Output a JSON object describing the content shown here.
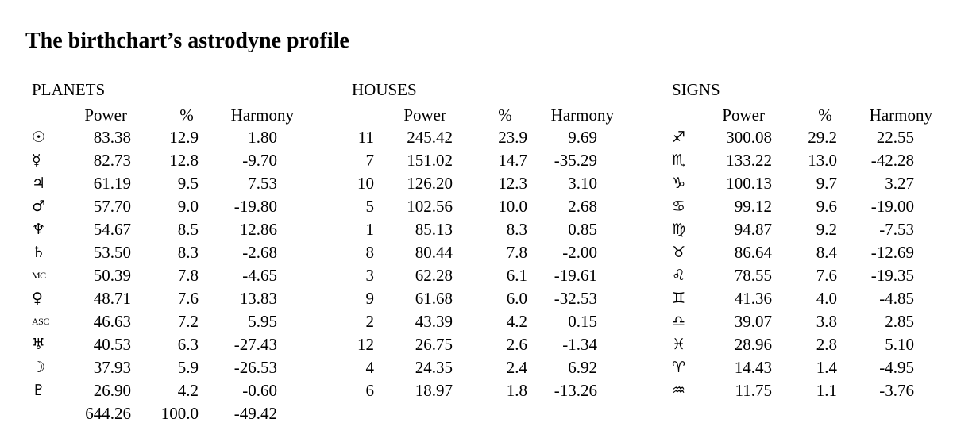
{
  "title": "The birthchart’s astrodyne profile",
  "planets": {
    "title": "PLANETS",
    "headers": {
      "power": "Power",
      "pct": "%",
      "harmony": "Harmony"
    },
    "rows": [
      {
        "label": "☉",
        "label_icon": "sun-symbol",
        "power": "83.38",
        "pct": "12.9",
        "harmony": "1.80"
      },
      {
        "label": "☿",
        "label_icon": "mercury-symbol",
        "power": "82.73",
        "pct": "12.8",
        "harmony": "-9.70"
      },
      {
        "label": "♃",
        "label_icon": "jupiter-symbol",
        "power": "61.19",
        "pct": "9.5",
        "harmony": "7.53"
      },
      {
        "label": "♂",
        "label_icon": "mars-symbol",
        "power": "57.70",
        "pct": "9.0",
        "harmony": "-19.80"
      },
      {
        "label": "♆",
        "label_icon": "neptune-symbol",
        "power": "54.67",
        "pct": "8.5",
        "harmony": "12.86"
      },
      {
        "label": "♄",
        "label_icon": "saturn-symbol",
        "power": "53.50",
        "pct": "8.3",
        "harmony": "-2.68"
      },
      {
        "label": "MC",
        "label_icon": "midheaven-abbrev",
        "power": "50.39",
        "pct": "7.8",
        "harmony": "-4.65"
      },
      {
        "label": "♀",
        "label_icon": "venus-symbol",
        "power": "48.71",
        "pct": "7.6",
        "harmony": "13.83"
      },
      {
        "label": "ASC",
        "label_icon": "ascendant-abbrev",
        "power": "46.63",
        "pct": "7.2",
        "harmony": "5.95"
      },
      {
        "label": "♅",
        "label_icon": "uranus-symbol",
        "power": "40.53",
        "pct": "6.3",
        "harmony": "-27.43"
      },
      {
        "label": "☽",
        "label_icon": "moon-symbol",
        "power": "37.93",
        "pct": "5.9",
        "harmony": "-26.53"
      },
      {
        "label": "♇",
        "label_icon": "pluto-symbol",
        "power": "26.90",
        "pct": "4.2",
        "harmony": "-0.60"
      }
    ],
    "totals": {
      "power": "644.26",
      "pct": "100.0",
      "harmony": "-49.42"
    }
  },
  "houses": {
    "title": "HOUSES",
    "headers": {
      "power": "Power",
      "pct": "%",
      "harmony": "Harmony"
    },
    "rows": [
      {
        "label": "11",
        "power": "245.42",
        "pct": "23.9",
        "harmony": "9.69"
      },
      {
        "label": "7",
        "power": "151.02",
        "pct": "14.7",
        "harmony": "-35.29"
      },
      {
        "label": "10",
        "power": "126.20",
        "pct": "12.3",
        "harmony": "3.10"
      },
      {
        "label": "5",
        "power": "102.56",
        "pct": "10.0",
        "harmony": "2.68"
      },
      {
        "label": "1",
        "power": "85.13",
        "pct": "8.3",
        "harmony": "0.85"
      },
      {
        "label": "8",
        "power": "80.44",
        "pct": "7.8",
        "harmony": "-2.00"
      },
      {
        "label": "3",
        "power": "62.28",
        "pct": "6.1",
        "harmony": "-19.61"
      },
      {
        "label": "9",
        "power": "61.68",
        "pct": "6.0",
        "harmony": "-32.53"
      },
      {
        "label": "2",
        "power": "43.39",
        "pct": "4.2",
        "harmony": "0.15"
      },
      {
        "label": "12",
        "power": "26.75",
        "pct": "2.6",
        "harmony": "-1.34"
      },
      {
        "label": "4",
        "power": "24.35",
        "pct": "2.4",
        "harmony": "6.92"
      },
      {
        "label": "6",
        "power": "18.97",
        "pct": "1.8",
        "harmony": "-13.26"
      }
    ]
  },
  "signs": {
    "title": "SIGNS",
    "headers": {
      "power": "Power",
      "pct": "%",
      "harmony": "Harmony"
    },
    "rows": [
      {
        "label": "♐",
        "label_icon": "sagittarius-symbol",
        "power": "300.08",
        "pct": "29.2",
        "harmony": "22.55"
      },
      {
        "label": "♏",
        "label_icon": "scorpio-symbol",
        "power": "133.22",
        "pct": "13.0",
        "harmony": "-42.28"
      },
      {
        "label": "♑",
        "label_icon": "capricorn-symbol",
        "power": "100.13",
        "pct": "9.7",
        "harmony": "3.27"
      },
      {
        "label": "♋",
        "label_icon": "cancer-symbol",
        "power": "99.12",
        "pct": "9.6",
        "harmony": "-19.00"
      },
      {
        "label": "♍",
        "label_icon": "virgo-symbol",
        "power": "94.87",
        "pct": "9.2",
        "harmony": "-7.53"
      },
      {
        "label": "♉",
        "label_icon": "taurus-symbol",
        "power": "86.64",
        "pct": "8.4",
        "harmony": "-12.69"
      },
      {
        "label": "♌",
        "label_icon": "leo-symbol",
        "power": "78.55",
        "pct": "7.6",
        "harmony": "-19.35"
      },
      {
        "label": "♊",
        "label_icon": "gemini-symbol",
        "power": "41.36",
        "pct": "4.0",
        "harmony": "-4.85"
      },
      {
        "label": "♎",
        "label_icon": "libra-symbol",
        "power": "39.07",
        "pct": "3.8",
        "harmony": "2.85"
      },
      {
        "label": "♓",
        "label_icon": "pisces-symbol",
        "power": "28.96",
        "pct": "2.8",
        "harmony": "5.10"
      },
      {
        "label": "♈",
        "label_icon": "aries-symbol",
        "power": "14.43",
        "pct": "1.4",
        "harmony": "-4.95"
      },
      {
        "label": "♒",
        "label_icon": "aquarius-symbol",
        "power": "11.75",
        "pct": "1.1",
        "harmony": "-3.76"
      }
    ]
  }
}
